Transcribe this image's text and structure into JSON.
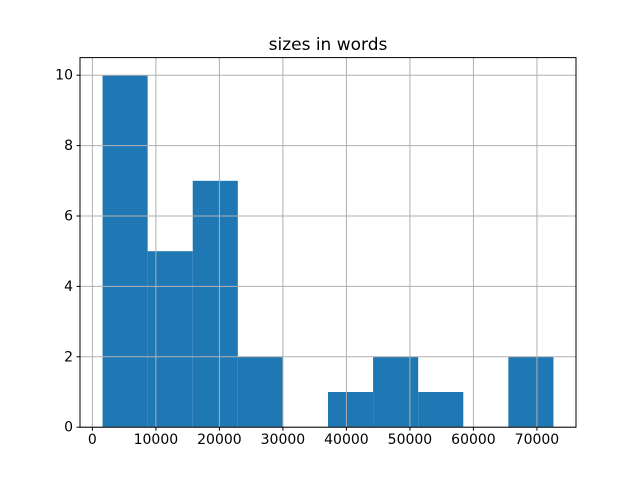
{
  "chart_data": {
    "type": "bar",
    "subtype": "histogram",
    "title": "sizes in words",
    "xlabel": "",
    "ylabel": "",
    "bin_edges": [
      1600,
      8700,
      15800,
      22900,
      30000,
      37100,
      44200,
      51300,
      58400,
      65500,
      72600
    ],
    "counts": [
      10,
      5,
      7,
      2,
      0,
      1,
      2,
      1,
      0,
      2
    ],
    "xticks": [
      0,
      10000,
      20000,
      30000,
      40000,
      50000,
      60000,
      70000
    ],
    "yticks": [
      0,
      2,
      4,
      6,
      8,
      10
    ],
    "xlim": [
      -1950,
      76150
    ],
    "ylim": [
      0,
      10.5
    ],
    "grid": true,
    "legend": false,
    "bar_color": "#1f77b4",
    "grid_color": "#b0b0b0",
    "spine_color": "#000000",
    "tick_color": "#000000",
    "text_color": "#000000",
    "background": "#ffffff"
  }
}
